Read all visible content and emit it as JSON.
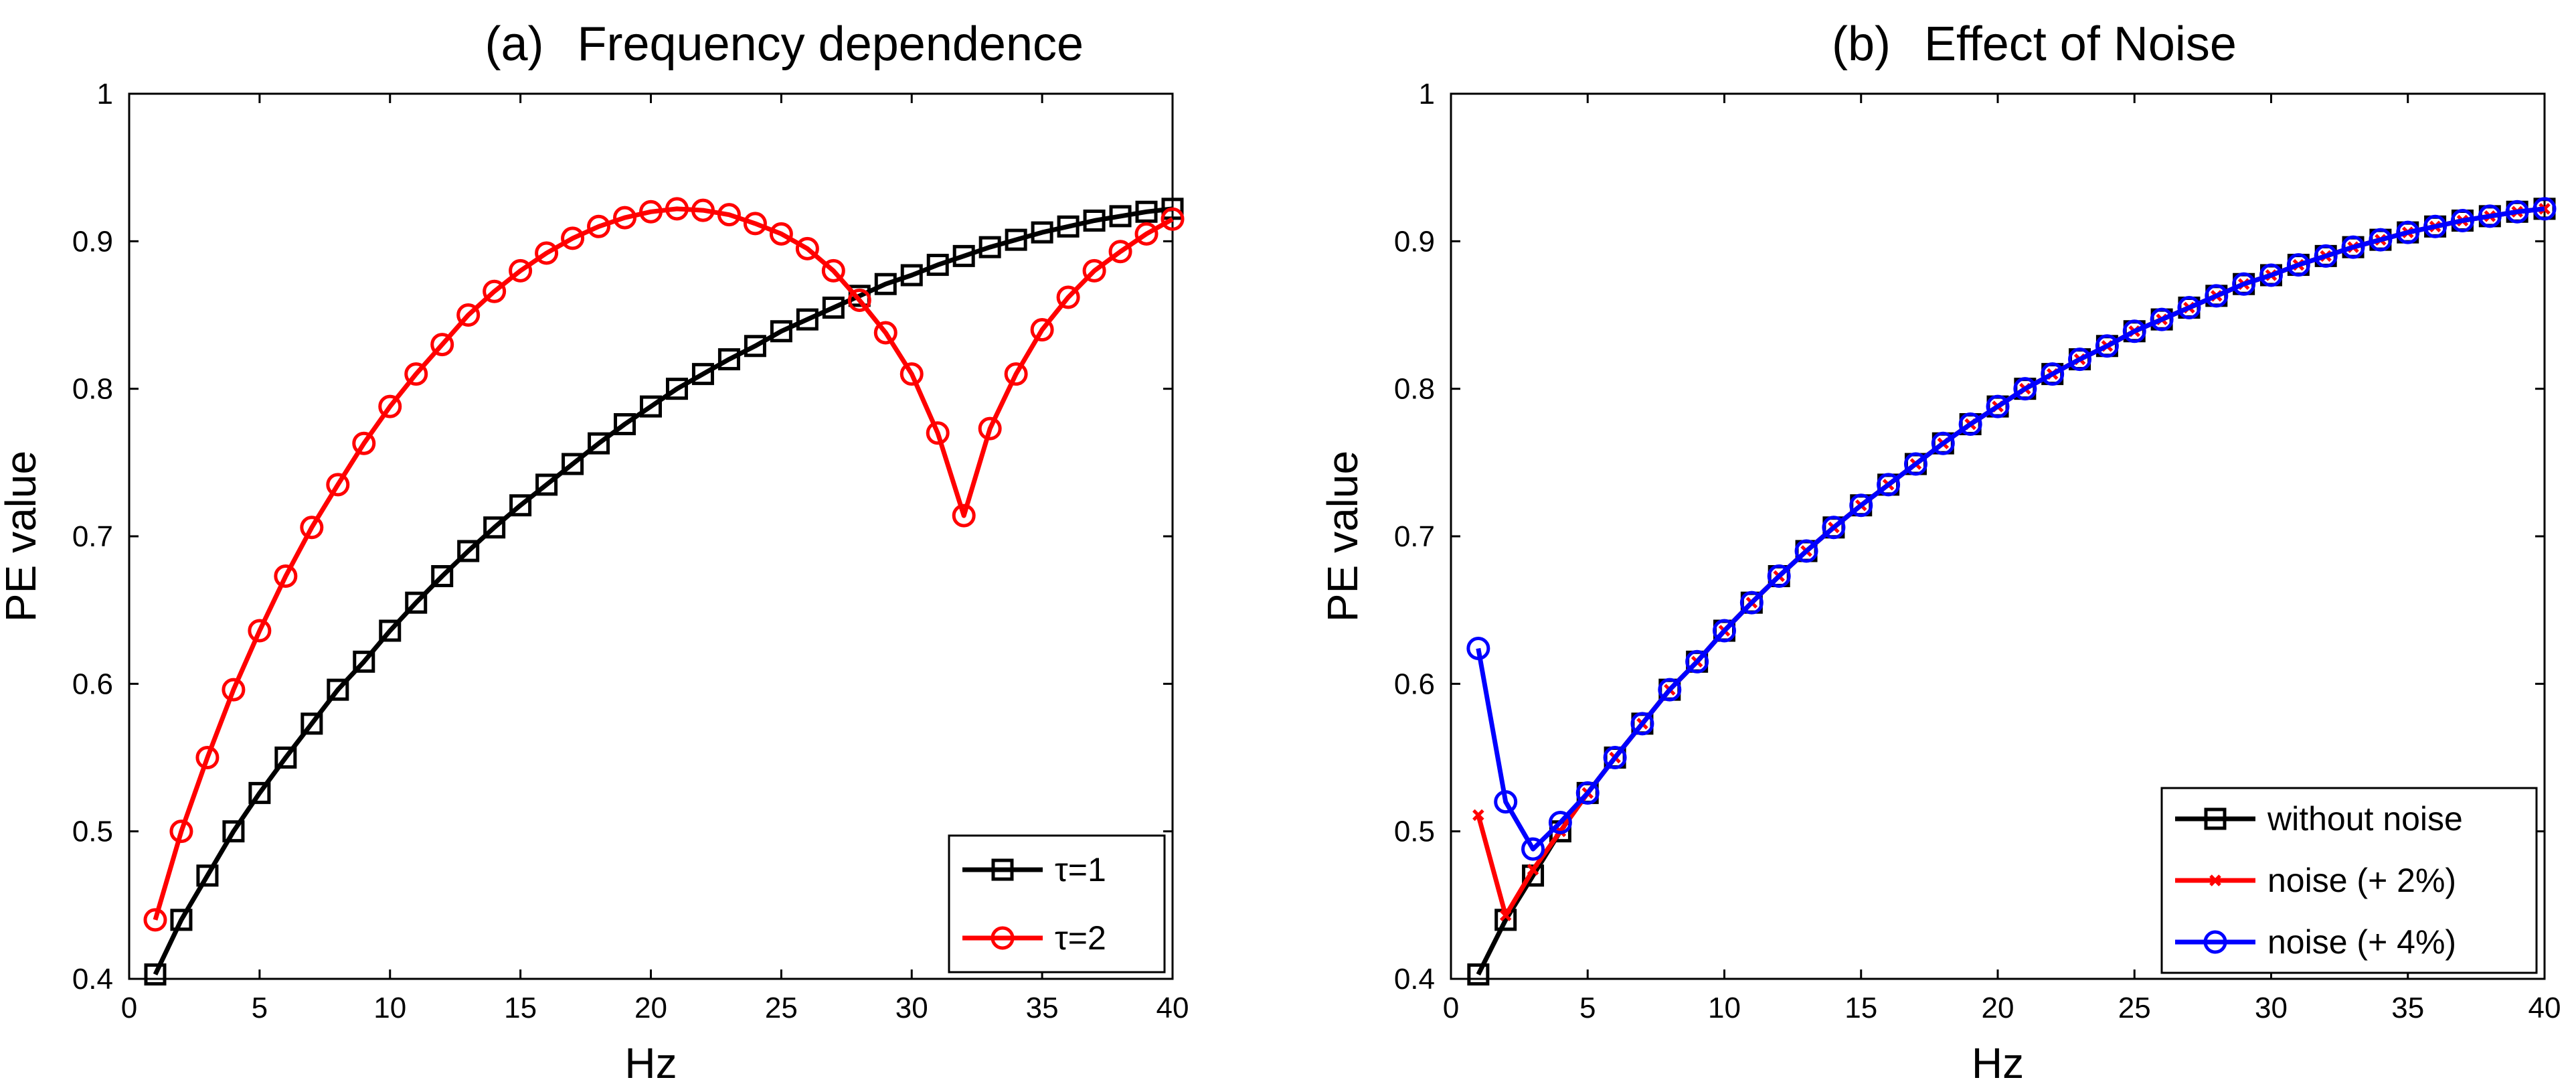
{
  "chart_data": [
    {
      "id": "a",
      "type": "line",
      "panel_tag": "(a)",
      "title": "Frequency dependence",
      "xlabel": "Hz",
      "ylabel": "PE value",
      "xlim": [
        0,
        40
      ],
      "ylim": [
        0.4,
        1
      ],
      "xticks": [
        0,
        5,
        10,
        15,
        20,
        25,
        30,
        35,
        40
      ],
      "yticks": [
        0.4,
        0.5,
        0.6,
        0.7,
        0.8,
        0.9,
        1
      ],
      "ytick_labels": [
        "0.4",
        "0.5",
        "0.6",
        "0.7",
        "0.8",
        "0.9",
        "1"
      ],
      "legend_position": "bottom-right",
      "x": [
        1,
        2,
        3,
        4,
        5,
        6,
        7,
        8,
        9,
        10,
        11,
        12,
        13,
        14,
        15,
        16,
        17,
        18,
        19,
        20,
        21,
        22,
        23,
        24,
        25,
        26,
        27,
        28,
        29,
        30,
        31,
        32,
        33,
        34,
        35,
        36,
        37,
        38,
        39,
        40
      ],
      "series": [
        {
          "name": "τ=1",
          "color": "#000000",
          "marker": "square",
          "values": [
            0.403,
            0.44,
            0.47,
            0.5,
            0.526,
            0.55,
            0.573,
            0.596,
            0.615,
            0.636,
            0.655,
            0.673,
            0.69,
            0.706,
            0.721,
            0.735,
            0.749,
            0.763,
            0.776,
            0.788,
            0.8,
            0.81,
            0.82,
            0.829,
            0.839,
            0.847,
            0.855,
            0.863,
            0.871,
            0.877,
            0.884,
            0.89,
            0.896,
            0.901,
            0.906,
            0.91,
            0.914,
            0.917,
            0.92,
            0.922
          ]
        },
        {
          "name": "τ=2",
          "color": "#ff0000",
          "marker": "circle",
          "values": [
            0.44,
            0.5,
            0.55,
            0.596,
            0.636,
            0.673,
            0.706,
            0.735,
            0.763,
            0.788,
            0.81,
            0.83,
            0.85,
            0.866,
            0.88,
            0.892,
            0.902,
            0.91,
            0.916,
            0.92,
            0.922,
            0.921,
            0.918,
            0.912,
            0.905,
            0.895,
            0.88,
            0.86,
            0.838,
            0.81,
            0.77,
            0.714,
            0.773,
            0.81,
            0.84,
            0.862,
            0.88,
            0.893,
            0.905,
            0.915
          ]
        }
      ]
    },
    {
      "id": "b",
      "type": "line",
      "panel_tag": "(b)",
      "title": "Effect of Noise",
      "xlabel": "Hz",
      "ylabel": "PE value",
      "xlim": [
        0,
        40
      ],
      "ylim": [
        0.4,
        1
      ],
      "xticks": [
        0,
        5,
        10,
        15,
        20,
        25,
        30,
        35,
        40
      ],
      "yticks": [
        0.4,
        0.5,
        0.6,
        0.7,
        0.8,
        0.9,
        1
      ],
      "ytick_labels": [
        "0.4",
        "0.5",
        "0.6",
        "0.7",
        "0.8",
        "0.9",
        "1"
      ],
      "legend_position": "bottom-right",
      "x": [
        1,
        2,
        3,
        4,
        5,
        6,
        7,
        8,
        9,
        10,
        11,
        12,
        13,
        14,
        15,
        16,
        17,
        18,
        19,
        20,
        21,
        22,
        23,
        24,
        25,
        26,
        27,
        28,
        29,
        30,
        31,
        32,
        33,
        34,
        35,
        36,
        37,
        38,
        39,
        40
      ],
      "series": [
        {
          "name": "without noise",
          "color": "#000000",
          "marker": "square",
          "values": [
            0.403,
            0.44,
            0.47,
            0.5,
            0.526,
            0.55,
            0.573,
            0.596,
            0.615,
            0.636,
            0.655,
            0.673,
            0.69,
            0.706,
            0.721,
            0.735,
            0.749,
            0.763,
            0.776,
            0.788,
            0.8,
            0.81,
            0.82,
            0.829,
            0.839,
            0.847,
            0.855,
            0.863,
            0.871,
            0.877,
            0.884,
            0.89,
            0.896,
            0.901,
            0.906,
            0.91,
            0.914,
            0.917,
            0.92,
            0.922
          ]
        },
        {
          "name": "noise (+ 2%)",
          "color": "#ff0000",
          "marker": "x",
          "values": [
            0.511,
            0.443,
            0.474,
            0.5,
            0.526,
            0.55,
            0.573,
            0.596,
            0.615,
            0.636,
            0.655,
            0.673,
            0.69,
            0.706,
            0.721,
            0.735,
            0.749,
            0.763,
            0.776,
            0.788,
            0.8,
            0.81,
            0.82,
            0.829,
            0.839,
            0.847,
            0.855,
            0.863,
            0.871,
            0.877,
            0.884,
            0.89,
            0.896,
            0.901,
            0.906,
            0.91,
            0.914,
            0.917,
            0.92,
            0.922
          ]
        },
        {
          "name": "noise (+ 4%)",
          "color": "#0000ff",
          "marker": "circle",
          "values": [
            0.624,
            0.52,
            0.488,
            0.506,
            0.526,
            0.55,
            0.573,
            0.596,
            0.615,
            0.636,
            0.655,
            0.673,
            0.69,
            0.706,
            0.721,
            0.735,
            0.749,
            0.763,
            0.776,
            0.788,
            0.8,
            0.81,
            0.82,
            0.829,
            0.839,
            0.847,
            0.855,
            0.863,
            0.871,
            0.877,
            0.884,
            0.89,
            0.896,
            0.901,
            0.906,
            0.91,
            0.914,
            0.917,
            0.92,
            0.922
          ]
        }
      ]
    }
  ]
}
